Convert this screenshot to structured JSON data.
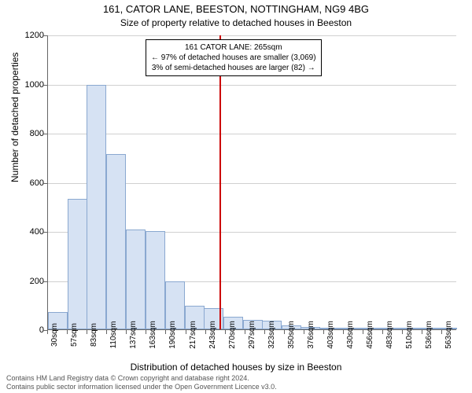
{
  "chart": {
    "type": "histogram",
    "title_main": "161, CATOR LANE, BEESTON, NOTTINGHAM, NG9 4BG",
    "title_sub": "Size of property relative to detached houses in Beeston",
    "y_axis_label": "Number of detached properties",
    "x_axis_label": "Distribution of detached houses by size in Beeston",
    "background_color": "#ffffff",
    "grid_color": "#d0d0d0",
    "axis_color": "#666666",
    "bar_fill": "#d6e2f3",
    "bar_border": "#8aa8d0",
    "ref_line_color": "#cc0000",
    "ref_line_x_value": 265,
    "ylim": [
      0,
      1200
    ],
    "y_ticks": [
      0,
      200,
      400,
      600,
      800,
      1000,
      1200
    ],
    "x_ticks": [
      "30sqm",
      "57sqm",
      "83sqm",
      "110sqm",
      "137sqm",
      "163sqm",
      "190sqm",
      "217sqm",
      "243sqm",
      "270sqm",
      "297sqm",
      "323sqm",
      "350sqm",
      "376sqm",
      "403sqm",
      "430sqm",
      "456sqm",
      "483sqm",
      "510sqm",
      "536sqm",
      "563sqm"
    ],
    "bars": [
      {
        "x_start": 30,
        "value": 70
      },
      {
        "x_start": 57,
        "value": 530
      },
      {
        "x_start": 83,
        "value": 995
      },
      {
        "x_start": 110,
        "value": 715
      },
      {
        "x_start": 137,
        "value": 405
      },
      {
        "x_start": 163,
        "value": 400
      },
      {
        "x_start": 190,
        "value": 195
      },
      {
        "x_start": 217,
        "value": 95
      },
      {
        "x_start": 243,
        "value": 85
      },
      {
        "x_start": 270,
        "value": 50
      },
      {
        "x_start": 297,
        "value": 40
      },
      {
        "x_start": 323,
        "value": 35
      },
      {
        "x_start": 350,
        "value": 15
      },
      {
        "x_start": 376,
        "value": 10
      },
      {
        "x_start": 403,
        "value": 5
      },
      {
        "x_start": 430,
        "value": 2
      },
      {
        "x_start": 456,
        "value": 2
      },
      {
        "x_start": 483,
        "value": 8
      },
      {
        "x_start": 510,
        "value": 2
      },
      {
        "x_start": 536,
        "value": 2
      },
      {
        "x_start": 563,
        "value": 2
      }
    ],
    "x_domain": [
      30,
      590
    ],
    "bar_width_units": 27,
    "annotation": {
      "line1": "161 CATOR LANE: 265sqm",
      "line2": "← 97% of detached houses are smaller (3,069)",
      "line3": "3% of semi-detached houses are larger (82) →"
    },
    "title_fontsize": 13,
    "subtitle_fontsize": 12,
    "axis_label_fontsize": 12,
    "tick_fontsize": 11
  },
  "footer": {
    "line1": "Contains HM Land Registry data © Crown copyright and database right 2024.",
    "line2": "Contains public sector information licensed under the Open Government Licence v3.0."
  }
}
